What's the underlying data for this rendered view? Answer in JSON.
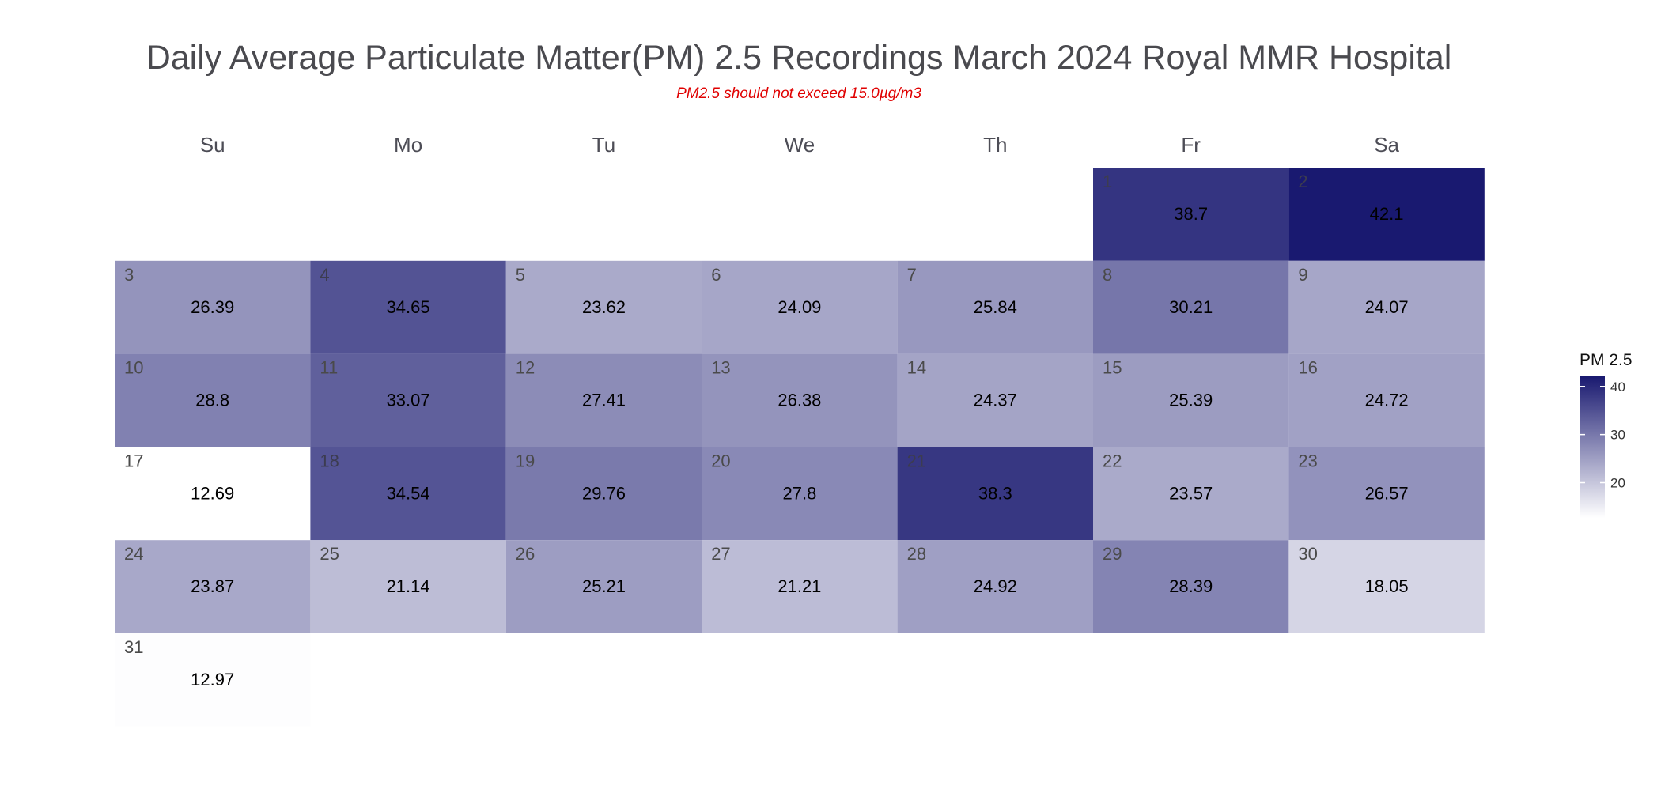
{
  "chart_data": {
    "type": "heatmap",
    "title": "Daily Average Particulate Matter(PM) 2.5 Recordings March 2024 Royal MMR Hospital",
    "subtitle": "PM2.5 should not exceed 15.0µg/m3",
    "weekdays": [
      "Su",
      "Mo",
      "Tu",
      "We",
      "Th",
      "Fr",
      "Sa"
    ],
    "first_weekday_index": 5,
    "days": [
      {
        "day": "1",
        "value": "38.7"
      },
      {
        "day": "2",
        "value": "42.1"
      },
      {
        "day": "3",
        "value": "26.39"
      },
      {
        "day": "4",
        "value": "34.65"
      },
      {
        "day": "5",
        "value": "23.62"
      },
      {
        "day": "6",
        "value": "24.09"
      },
      {
        "day": "7",
        "value": "25.84"
      },
      {
        "day": "8",
        "value": "30.21"
      },
      {
        "day": "9",
        "value": "24.07"
      },
      {
        "day": "10",
        "value": "28.8"
      },
      {
        "day": "11",
        "value": "33.07"
      },
      {
        "day": "12",
        "value": "27.41"
      },
      {
        "day": "13",
        "value": "26.38"
      },
      {
        "day": "14",
        "value": "24.37"
      },
      {
        "day": "15",
        "value": "25.39"
      },
      {
        "day": "16",
        "value": "24.72"
      },
      {
        "day": "17",
        "value": "12.69"
      },
      {
        "day": "18",
        "value": "34.54"
      },
      {
        "day": "19",
        "value": "29.76"
      },
      {
        "day": "20",
        "value": "27.8"
      },
      {
        "day": "21",
        "value": "38.3"
      },
      {
        "day": "22",
        "value": "23.57"
      },
      {
        "day": "23",
        "value": "26.57"
      },
      {
        "day": "24",
        "value": "23.87"
      },
      {
        "day": "25",
        "value": "21.14"
      },
      {
        "day": "26",
        "value": "25.21"
      },
      {
        "day": "27",
        "value": "21.21"
      },
      {
        "day": "28",
        "value": "24.92"
      },
      {
        "day": "29",
        "value": "28.39"
      },
      {
        "day": "30",
        "value": "18.05"
      },
      {
        "day": "31",
        "value": "12.97"
      }
    ],
    "color_scale": {
      "low_color": "#ffffff",
      "high_color": "#191970",
      "min": 12.69,
      "max": 42.1
    },
    "legend": {
      "title": "PM 2.5",
      "ticks": [
        "20",
        "30",
        "40"
      ],
      "position": "right"
    }
  }
}
